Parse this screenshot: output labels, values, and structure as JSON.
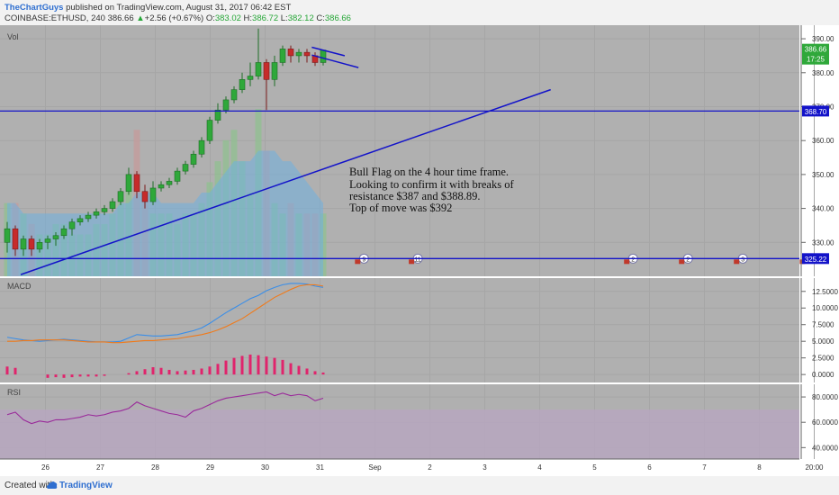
{
  "header": {
    "publisher": "TheChartGuys",
    "published_on": "published on TradingView.com, August 31, 2017 06:42 EST",
    "symbol": "COINBASE:ETHUSD, 240",
    "last": "386.66",
    "change": "+2.56 (+0.67%)",
    "o_label": "O:",
    "o_val": "383.02",
    "h_label": "H:",
    "h_val": "386.72",
    "l_label": "L:",
    "l_val": "382.12",
    "c_label": "C:",
    "c_val": "386.66"
  },
  "footer": {
    "created_with": "Created with",
    "brand": "TradingView"
  },
  "colors": {
    "bg": "#b0b0b0",
    "up": "#2fa83a",
    "down": "#c62b2b",
    "line": "#1313c9",
    "macd": "#3a8ee8",
    "signal": "#f07a1a",
    "hist": "#e0246c",
    "rsi": "#9a2a9a"
  },
  "chart_data": [
    {
      "type": "candlestick",
      "label": "Vol",
      "ylim": [
        320,
        394
      ],
      "y_ticks": [
        {
          "v": 390,
          "t": "390.00"
        },
        {
          "v": 380,
          "t": "380.00"
        },
        {
          "v": 370,
          "t": "370.00"
        },
        {
          "v": 360,
          "t": "360.00"
        },
        {
          "v": 350,
          "t": "350.00"
        },
        {
          "v": 340,
          "t": "340.00"
        },
        {
          "v": 330,
          "t": "330.00"
        }
      ],
      "x_labels": [
        {
          "x": 0.5,
          "t": "26"
        },
        {
          "x": 1.5,
          "t": "27"
        },
        {
          "x": 2.5,
          "t": "28"
        },
        {
          "x": 3.5,
          "t": "29"
        },
        {
          "x": 4.5,
          "t": "30"
        },
        {
          "x": 5.5,
          "t": "31"
        },
        {
          "x": 6.5,
          "t": "Sep"
        },
        {
          "x": 7.5,
          "t": "2"
        },
        {
          "x": 8.5,
          "t": "3"
        },
        {
          "x": 9.5,
          "t": "4"
        },
        {
          "x": 10.5,
          "t": "5"
        },
        {
          "x": 11.5,
          "t": "6"
        },
        {
          "x": 12.5,
          "t": "7"
        },
        {
          "x": 13.5,
          "t": "8"
        },
        {
          "x": 14.5,
          "t": "20:00"
        }
      ],
      "candles": [
        [
          330,
          334,
          327,
          336
        ],
        [
          334,
          328,
          326,
          335
        ],
        [
          328,
          331,
          326,
          332
        ],
        [
          331,
          328,
          326,
          332
        ],
        [
          328,
          330,
          327,
          331
        ],
        [
          330,
          331,
          328,
          332
        ],
        [
          331,
          332,
          329,
          333
        ],
        [
          332,
          334,
          331,
          335
        ],
        [
          334,
          336,
          332,
          337
        ],
        [
          336,
          337,
          335,
          338
        ],
        [
          337,
          338,
          336,
          339
        ],
        [
          338,
          339,
          337,
          340
        ],
        [
          339,
          340,
          338,
          341
        ],
        [
          340,
          342,
          339,
          343
        ],
        [
          342,
          345,
          341,
          346
        ],
        [
          345,
          350,
          344,
          352
        ],
        [
          350,
          345,
          343,
          351
        ],
        [
          345,
          342,
          340,
          347
        ],
        [
          342,
          346,
          341,
          348
        ],
        [
          346,
          347,
          345,
          348
        ],
        [
          347,
          348,
          346,
          349
        ],
        [
          348,
          351,
          347,
          352
        ],
        [
          351,
          353,
          350,
          354
        ],
        [
          353,
          356,
          352,
          357
        ],
        [
          356,
          360,
          355,
          361
        ],
        [
          360,
          366,
          359,
          367
        ],
        [
          366,
          369,
          365,
          371
        ],
        [
          369,
          372,
          368,
          373
        ],
        [
          372,
          375,
          371,
          376
        ],
        [
          375,
          378,
          374,
          380
        ],
        [
          378,
          379,
          376,
          383
        ],
        [
          379,
          383,
          378,
          393
        ],
        [
          383,
          378,
          369,
          384
        ],
        [
          378,
          383,
          376,
          385
        ],
        [
          383,
          387,
          382,
          388
        ],
        [
          387,
          385,
          383,
          388
        ],
        [
          385,
          386,
          383,
          387
        ],
        [
          386,
          385,
          383,
          387
        ],
        [
          385,
          383,
          382,
          386
        ],
        [
          383,
          386.66,
          382.12,
          386.72
        ]
      ],
      "volume": [
        331,
        331,
        330,
        329,
        328,
        328,
        329,
        329,
        328,
        328,
        328,
        329,
        329,
        330,
        331,
        333,
        338,
        332,
        330,
        330,
        330,
        329,
        330,
        330,
        331,
        333,
        335,
        337,
        338,
        335,
        332,
        340,
        336,
        331,
        330,
        331,
        330,
        330,
        330,
        330
      ],
      "volume_ma": [
        331,
        331,
        330,
        330,
        330,
        330,
        330,
        330,
        330,
        330,
        330,
        330,
        330,
        330,
        331,
        331,
        332,
        332,
        332,
        331,
        331,
        331,
        331,
        331,
        332,
        332,
        333,
        334,
        335,
        335,
        335,
        336,
        336,
        336,
        335,
        335,
        334,
        333,
        332,
        331
      ],
      "levels": [
        {
          "value": 368.7,
          "label": "368.70",
          "color": "#1313c9"
        },
        {
          "value": 325.22,
          "label": "325.22",
          "color": "#1313c9"
        }
      ],
      "last_price": {
        "value": 386.66,
        "label": "386.66",
        "timer": "17:25"
      },
      "trendline": {
        "x0": 0.05,
        "y0": 320.5,
        "x1": 9.7,
        "y1": 375
      },
      "flag_upper": {
        "x0": 5.35,
        "y0": 387.5,
        "x1": 5.95,
        "y1": 385
      },
      "flag_lower": {
        "x0": 5.35,
        "y0": 385.2,
        "x1": 6.2,
        "y1": 381.5
      },
      "annotation": [
        "Bull Flag on the 4 hour time frame.",
        "Looking to confirm it with breaks of",
        "resistance $387 and $388.89.",
        "Top of move was $392"
      ],
      "event_badges": [
        {
          "x": 6.3,
          "t": "9"
        },
        {
          "x": 7.28,
          "t": "11"
        },
        {
          "x": 11.2,
          "t": "2"
        },
        {
          "x": 12.2,
          "t": "2"
        },
        {
          "x": 13.2,
          "t": "3"
        },
        {
          "x": 14.4,
          "t": "2"
        }
      ]
    },
    {
      "type": "line",
      "label": "MACD",
      "ylim": [
        -1.2,
        14.5
      ],
      "y_ticks": [
        {
          "v": 12.5,
          "t": "12.5000"
        },
        {
          "v": 10,
          "t": "10.0000"
        },
        {
          "v": 7.5,
          "t": "7.5000"
        },
        {
          "v": 5,
          "t": "5.0000"
        },
        {
          "v": 2.5,
          "t": "2.5000"
        },
        {
          "v": 0,
          "t": "0.0000"
        }
      ],
      "series": [
        {
          "values": [
            5.6,
            5.4,
            5.2,
            5.1,
            5.0,
            5.1,
            5.2,
            5.3,
            5.2,
            5.1,
            5.0,
            4.9,
            4.9,
            4.9,
            5.0,
            5.5,
            6.0,
            5.9,
            5.8,
            5.8,
            5.9,
            6.0,
            6.3,
            6.6,
            7.0,
            7.7,
            8.5,
            9.3,
            10.0,
            10.7,
            11.4,
            11.9,
            12.6,
            13.1,
            13.5,
            13.7,
            13.7,
            13.6,
            13.3,
            13.1
          ]
        },
        {
          "values": [
            5.0,
            5.0,
            5.1,
            5.1,
            5.2,
            5.2,
            5.2,
            5.2,
            5.1,
            5.0,
            4.9,
            4.9,
            4.9,
            4.8,
            4.8,
            4.9,
            5.0,
            5.1,
            5.1,
            5.2,
            5.3,
            5.4,
            5.6,
            5.8,
            6.0,
            6.3,
            6.7,
            7.2,
            7.8,
            8.4,
            9.2,
            10.0,
            10.8,
            11.6,
            12.2,
            12.8,
            13.3,
            13.5,
            13.5,
            13.3
          ]
        }
      ],
      "histogram": [
        1.2,
        1.0,
        0,
        0,
        0,
        -0.5,
        -0.4,
        -0.5,
        -0.4,
        -0.3,
        -0.3,
        -0.3,
        -0.2,
        0,
        0,
        0.2,
        0.5,
        0.8,
        1.1,
        1.0,
        0.7,
        0.5,
        0.6,
        0.7,
        0.9,
        1.2,
        1.6,
        2.1,
        2.5,
        2.8,
        3.0,
        2.9,
        2.7,
        2.5,
        2.2,
        1.7,
        1.3,
        0.9,
        0.5,
        0.3
      ]
    },
    {
      "type": "line",
      "label": "RSI",
      "ylim": [
        31,
        90
      ],
      "y_ticks": [
        {
          "v": 80,
          "t": "80.0000"
        },
        {
          "v": 60,
          "t": "60.0000"
        },
        {
          "v": 40,
          "t": "40.0000"
        }
      ],
      "band": [
        30,
        70
      ],
      "values": [
        66,
        68,
        62,
        59,
        61,
        60,
        62,
        62,
        63,
        64,
        66,
        65,
        66,
        68,
        69,
        71,
        76,
        73,
        71,
        69,
        67,
        66,
        64,
        69,
        71,
        74,
        77,
        79,
        80,
        81,
        82,
        83,
        84,
        81,
        83,
        81,
        82,
        81,
        77,
        79
      ]
    }
  ]
}
